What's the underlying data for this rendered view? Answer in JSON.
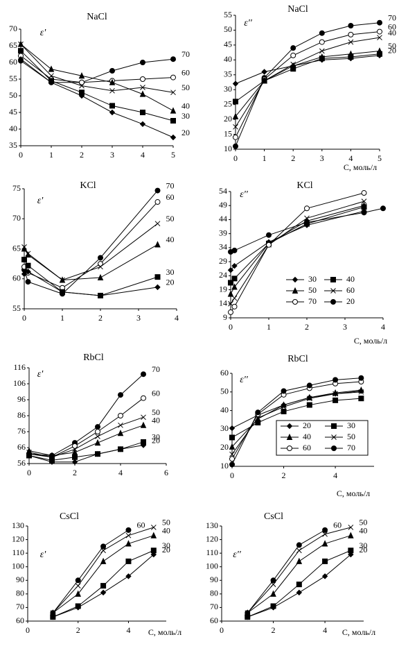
{
  "chart_data": [
    {
      "type": "line",
      "title": "NaCl",
      "y_label": "ε'",
      "x": [
        0,
        1,
        2,
        3,
        4,
        5
      ],
      "xlim": [
        0,
        5
      ],
      "xticks": [
        0,
        1,
        2,
        3,
        4,
        5
      ],
      "ylim": [
        35,
        70
      ],
      "yticks": [
        35,
        40,
        45,
        50,
        55,
        60,
        65,
        70
      ],
      "series_labels": "end",
      "series": [
        {
          "name": "70",
          "color": "#000",
          "marker": "circle",
          "values": [
            60.5,
            54,
            54,
            57.5,
            60,
            61
          ]
        },
        {
          "name": "60",
          "color": "#000",
          "marker": "open-circle",
          "values": [
            62,
            55,
            54,
            54.5,
            55,
            55.5
          ]
        },
        {
          "name": "50",
          "color": "#000",
          "marker": "x",
          "values": [
            65.5,
            56,
            53,
            51.5,
            52.5,
            51
          ]
        },
        {
          "name": "40",
          "color": "#000",
          "marker": "triangle",
          "values": [
            65.5,
            58,
            56,
            54,
            50.5,
            45.5
          ]
        },
        {
          "name": "30",
          "color": "#000",
          "marker": "square",
          "values": [
            63.5,
            54.5,
            51,
            47,
            45,
            42.5
          ]
        },
        {
          "name": "20",
          "color": "#000",
          "marker": "diamond",
          "values": [
            61,
            54,
            50,
            45,
            41.5,
            37.5
          ]
        }
      ]
    },
    {
      "type": "line",
      "title": "NaCl",
      "y_label": "ε''",
      "x_label": "C, моль/л",
      "x": [
        0,
        1,
        2,
        3,
        4,
        5
      ],
      "xlim": [
        0,
        5
      ],
      "xticks": [
        0,
        1,
        2,
        3,
        4,
        5
      ],
      "ylim": [
        10,
        55
      ],
      "yticks": [
        10,
        15,
        20,
        25,
        30,
        35,
        40,
        45,
        50,
        55
      ],
      "series_labels": "end",
      "series": [
        {
          "name": "70",
          "color": "#000",
          "marker": "circle",
          "values": [
            11,
            34,
            44,
            49,
            51.5,
            52.5
          ]
        },
        {
          "name": "60",
          "color": "#000",
          "marker": "open-circle",
          "values": [
            14,
            33.5,
            41.5,
            46,
            48.5,
            49.5
          ]
        },
        {
          "name": "40",
          "color": "#000",
          "marker": "x",
          "values": [
            17.5,
            33,
            38.5,
            43,
            46,
            47.5
          ]
        },
        {
          "name": "50",
          "color": "#000",
          "marker": "triangle",
          "values": [
            21,
            33,
            38,
            41,
            42,
            43
          ]
        },
        {
          "color": "#000",
          "marker": "square",
          "values": [
            26,
            33,
            37,
            40.5,
            41,
            42
          ]
        },
        {
          "name": "20",
          "color": "#000",
          "marker": "diamond",
          "values": [
            32,
            36,
            38,
            40,
            40.5,
            41.5
          ]
        }
      ]
    },
    {
      "type": "line",
      "title": "KCl",
      "y_label": "ε'",
      "x": [
        0,
        0.1,
        1,
        2,
        3.5
      ],
      "xlim": [
        0,
        4
      ],
      "xticks": [
        0,
        1,
        2,
        3,
        4
      ],
      "ylim": [
        55,
        75
      ],
      "yticks": [
        55,
        60,
        65,
        70,
        75
      ],
      "series_labels": "end",
      "series": [
        {
          "name": "70",
          "color": "#000",
          "marker": "circle",
          "values": [
            61.5,
            59.5,
            57.5,
            63.5,
            74.7
          ]
        },
        {
          "name": "60",
          "color": "#000",
          "marker": "open-circle",
          "values": [
            62,
            61,
            58.5,
            62.5,
            72.8
          ]
        },
        {
          "name": "50",
          "color": "#000",
          "marker": "x",
          "values": [
            65.3,
            64.2,
            59.8,
            62,
            69.2
          ]
        },
        {
          "name": "40",
          "color": "#000",
          "marker": "triangle",
          "values": [
            65,
            64,
            59.8,
            60.2,
            65.7
          ]
        },
        {
          "name": "30",
          "color": "#000",
          "marker": "square",
          "values": [
            63.2,
            62.2,
            57.8,
            57.2,
            60.3
          ]
        },
        {
          "name": "20",
          "color": "#000",
          "marker": "diamond",
          "values": [
            60.8,
            61.2,
            57.8,
            57.2,
            58.6
          ]
        }
      ]
    },
    {
      "type": "line",
      "title": "KCl",
      "y_label": "ε''",
      "x_label": "C,  моль/л",
      "x": [
        0,
        0.1,
        1,
        2,
        3.5,
        4
      ],
      "xlim": [
        0,
        4
      ],
      "xticks": [
        0,
        1,
        2,
        3,
        4
      ],
      "ylim": [
        9,
        54
      ],
      "yticks": [
        9,
        14,
        19,
        24,
        29,
        34,
        39,
        44,
        49,
        54
      ],
      "legend": "center-right",
      "legend_frame": false,
      "series": [
        {
          "name": "30",
          "color": "#000",
          "marker": "diamond",
          "values": [
            26,
            27.5,
            36,
            42,
            47,
            null
          ]
        },
        {
          "name": "40",
          "color": "#000",
          "marker": "square",
          "values": [
            21.5,
            23,
            35.5,
            42.5,
            48.5,
            null
          ]
        },
        {
          "name": "50",
          "color": "#000",
          "marker": "triangle",
          "values": [
            17.5,
            20,
            35.5,
            43.5,
            49,
            null
          ]
        },
        {
          "name": "60",
          "color": "#000",
          "marker": "x",
          "values": [
            14,
            16,
            35,
            44.5,
            50.5,
            null
          ]
        },
        {
          "name": "70",
          "color": "#000",
          "marker": "open-circle",
          "values": [
            11,
            13,
            35,
            48,
            53.5,
            null
          ]
        },
        {
          "name": "20",
          "color": "#000",
          "marker": "circle",
          "values": [
            32.5,
            33,
            38.5,
            43,
            46.5,
            48
          ]
        }
      ]
    },
    {
      "type": "line",
      "title": "RbCl",
      "y_label": "ε'",
      "x": [
        0,
        1,
        2,
        3,
        4,
        5
      ],
      "xlim": [
        0,
        6
      ],
      "xticks": [
        0,
        2,
        4,
        6
      ],
      "ylim": [
        56,
        116
      ],
      "yticks": [
        56,
        66,
        76,
        86,
        96,
        106,
        116
      ],
      "series_labels": "end",
      "series": [
        {
          "name": "70",
          "color": "#000",
          "marker": "circle",
          "values": [
            62,
            61,
            69,
            79,
            99,
            112
          ]
        },
        {
          "name": "60",
          "color": "#000",
          "marker": "open-circle",
          "values": [
            62,
            60,
            67,
            76,
            86,
            97
          ]
        },
        {
          "name": "50",
          "color": "#000",
          "marker": "x",
          "values": [
            63,
            60,
            65,
            73,
            80,
            85
          ]
        },
        {
          "name": "40",
          "color": "#000",
          "marker": "triangle",
          "values": [
            64,
            61,
            63,
            69,
            75,
            80
          ]
        },
        {
          "name": "30",
          "color": "#000",
          "marker": "square",
          "values": [
            61,
            58,
            60,
            62,
            65,
            69.5
          ]
        },
        {
          "name": "20",
          "color": "#000",
          "marker": "diamond",
          "values": [
            61,
            57,
            57,
            62,
            65,
            67.5
          ]
        }
      ]
    },
    {
      "type": "line",
      "title": "RbCl",
      "y_label": "ε''",
      "x_label": "C, моль/л",
      "x": [
        0,
        1,
        2,
        3,
        4,
        5
      ],
      "xlim": [
        0,
        5.5
      ],
      "xticks": [
        0,
        2,
        4
      ],
      "ylim": [
        10,
        60
      ],
      "yticks": [
        10,
        20,
        30,
        40,
        50,
        60
      ],
      "legend": "lower-right",
      "legend_frame": true,
      "series": [
        {
          "name": "20",
          "color": "#000",
          "marker": "diamond",
          "values": [
            30.5,
            37.5,
            43,
            47,
            49,
            50.5
          ]
        },
        {
          "name": "30",
          "color": "#000",
          "marker": "square",
          "values": [
            25.5,
            33.5,
            39.5,
            43,
            45.5,
            46.5
          ]
        },
        {
          "name": "40",
          "color": "#000",
          "marker": "triangle",
          "values": [
            20.5,
            35.5,
            43,
            47,
            49.5,
            51
          ]
        },
        {
          "name": "50",
          "color": "#000",
          "marker": "x",
          "values": [
            16.5,
            36,
            42,
            46.5,
            49,
            50
          ]
        },
        {
          "name": "60",
          "color": "#000",
          "marker": "open-circle",
          "values": [
            14,
            38,
            48.5,
            52,
            54.5,
            55.5
          ]
        },
        {
          "name": "70",
          "color": "#000",
          "marker": "circle",
          "values": [
            11,
            39,
            50.5,
            53.5,
            56.5,
            57.5
          ]
        }
      ]
    },
    {
      "type": "line",
      "title": "CsCl",
      "y_label": "ε'",
      "x_label": "C, моль/л",
      "x": [
        1,
        2,
        3,
        4,
        5
      ],
      "xlim": [
        0,
        5.5
      ],
      "xticks": [
        0,
        2,
        4
      ],
      "ylim": [
        60,
        130
      ],
      "yticks": [
        60,
        70,
        80,
        90,
        100,
        110,
        120,
        130
      ],
      "series_labels": "end",
      "series": [
        {
          "name": "60",
          "color": "#000",
          "marker": "circle",
          "values": [
            66,
            90,
            115,
            127,
            null
          ]
        },
        {
          "name": "50",
          "color": "#000",
          "marker": "x",
          "values": [
            66,
            86,
            112,
            123,
            129
          ]
        },
        {
          "name": "40",
          "color": "#000",
          "marker": "triangle",
          "values": [
            66,
            80,
            104,
            117,
            123
          ]
        },
        {
          "name": "30",
          "color": "#000",
          "marker": "square",
          "values": [
            63,
            71,
            86,
            104,
            112
          ]
        },
        {
          "name": "20",
          "color": "#000",
          "marker": "diamond",
          "values": [
            63,
            70,
            81,
            93,
            109
          ]
        }
      ]
    },
    {
      "type": "line",
      "title": "CsCl",
      "y_label": "ε''",
      "x_label": "C, моль/л",
      "x": [
        1,
        2,
        3,
        4,
        5
      ],
      "xlim": [
        0,
        5.5
      ],
      "xticks": [
        0,
        2,
        4
      ],
      "ylim": [
        60,
        130
      ],
      "yticks": [
        60,
        70,
        80,
        90,
        100,
        110,
        120,
        130
      ],
      "series_labels": "end",
      "series": [
        {
          "name": "60",
          "color": "#000",
          "marker": "circle",
          "values": [
            66,
            90,
            116,
            127,
            null
          ]
        },
        {
          "name": "50",
          "color": "#000",
          "marker": "x",
          "values": [
            66,
            87,
            112,
            124,
            129
          ]
        },
        {
          "name": "40",
          "color": "#000",
          "marker": "triangle",
          "values": [
            66,
            80,
            104,
            117,
            123
          ]
        },
        {
          "name": "30",
          "color": "#000",
          "marker": "square",
          "values": [
            63,
            71,
            87,
            104,
            112
          ]
        },
        {
          "name": "20",
          "color": "#000",
          "marker": "diamond",
          "values": [
            63,
            70,
            81,
            93,
            109
          ]
        }
      ]
    }
  ]
}
